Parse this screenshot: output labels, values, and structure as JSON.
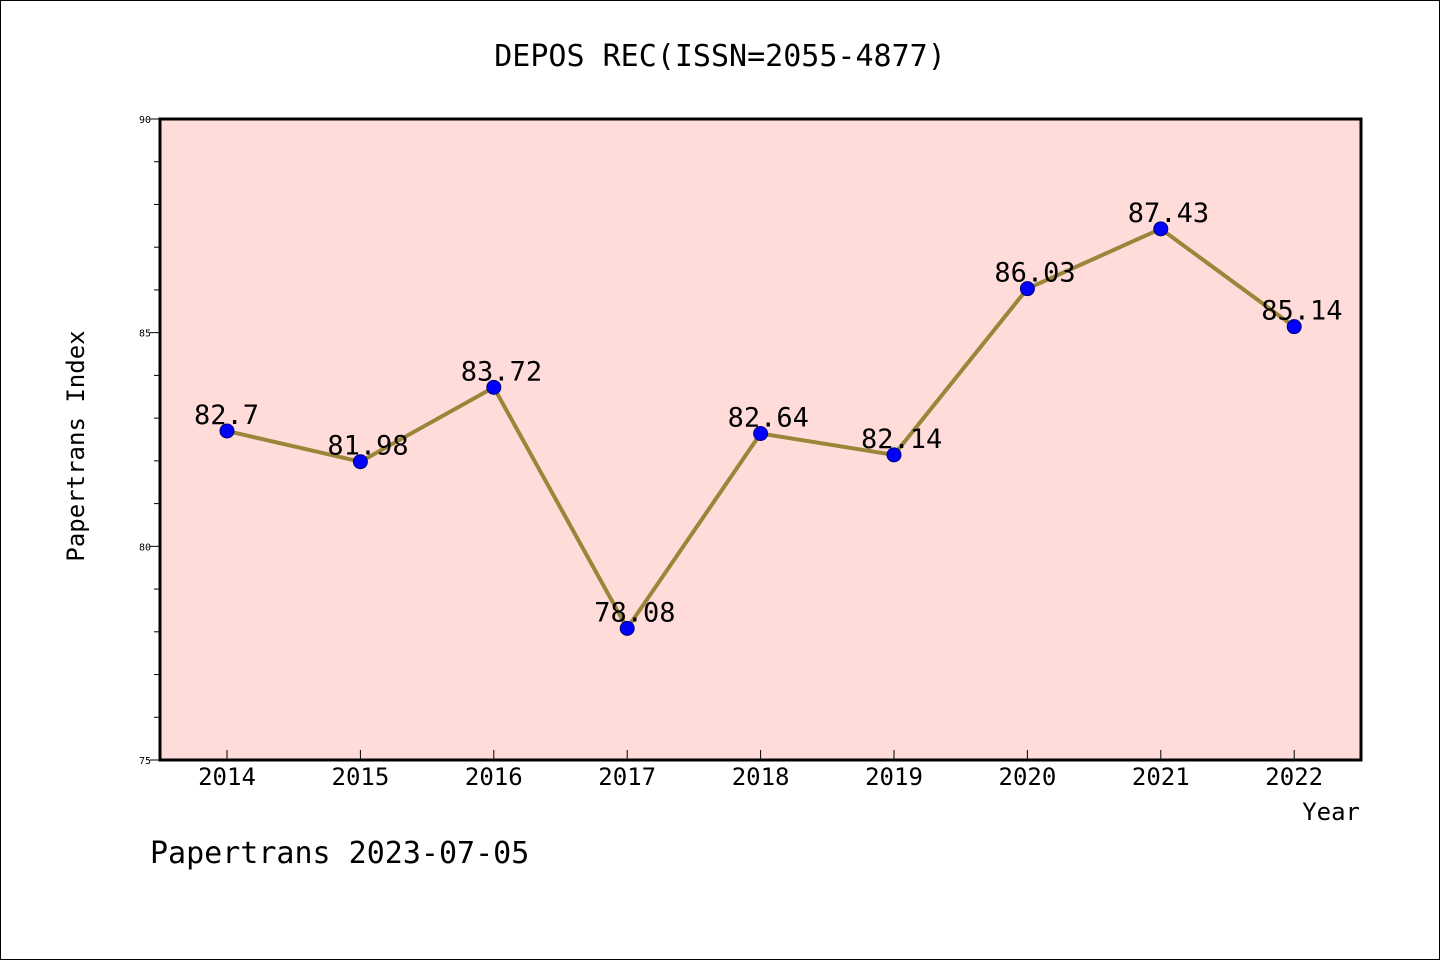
{
  "chart_data": {
    "type": "line",
    "title": "DEPOS REC(ISSN=2055-4877)",
    "xlabel": "Year",
    "ylabel": "Papertrans Index",
    "categories": [
      "2014",
      "2015",
      "2016",
      "2017",
      "2018",
      "2019",
      "2020",
      "2021",
      "2022"
    ],
    "values": [
      82.7,
      81.98,
      83.72,
      78.08,
      82.64,
      82.14,
      86.03,
      87.43,
      85.14
    ],
    "data_labels": [
      "82.7",
      "81.98",
      "83.72",
      "78.08",
      "82.64",
      "82.14",
      "86.03",
      "87.43",
      "85.14"
    ],
    "ylim": [
      75,
      90
    ],
    "yticks": [
      "75",
      "80",
      "85",
      "90"
    ],
    "grid": false,
    "legend": "none"
  },
  "footer": "Papertrans 2023-07-05",
  "colors": {
    "plot_background": "#FFDCDA",
    "line": "#9A8538",
    "marker": "#0000FF",
    "axis": "#000000"
  }
}
